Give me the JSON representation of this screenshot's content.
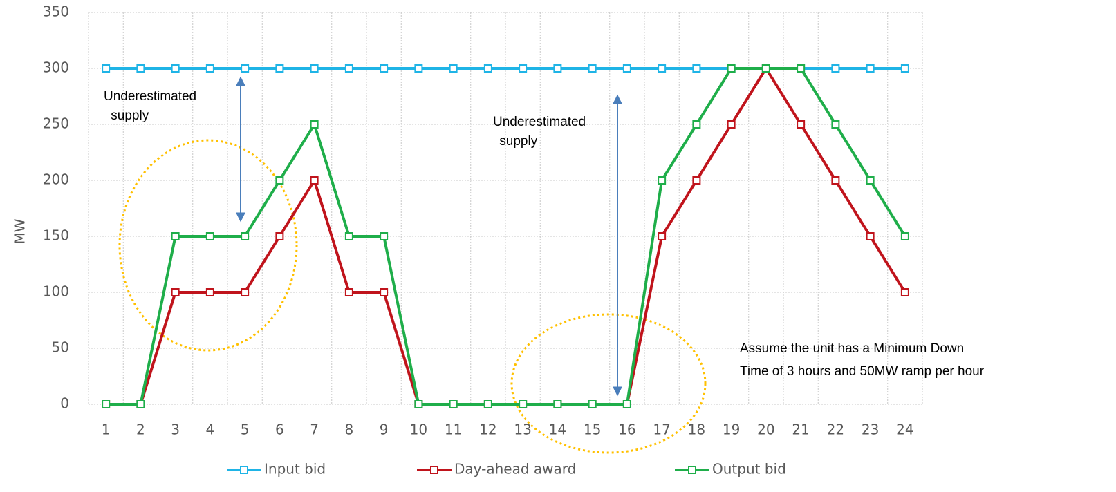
{
  "chart_data": {
    "type": "line",
    "categories": [
      "1",
      "2",
      "3",
      "4",
      "5",
      "6",
      "7",
      "8",
      "9",
      "10",
      "11",
      "12",
      "13",
      "14",
      "15",
      "16",
      "17",
      "18",
      "19",
      "20",
      "21",
      "22",
      "23",
      "24"
    ],
    "series": [
      {
        "name": "Input bid",
        "color": "#1fb4e6",
        "values": [
          300,
          300,
          300,
          300,
          300,
          300,
          300,
          300,
          300,
          300,
          300,
          300,
          300,
          300,
          300,
          300,
          300,
          300,
          300,
          300,
          300,
          300,
          300,
          300
        ]
      },
      {
        "name": "Day-ahead award",
        "color": "#c0141c",
        "values": [
          0,
          0,
          100,
          100,
          100,
          150,
          200,
          100,
          100,
          0,
          0,
          0,
          0,
          0,
          0,
          0,
          150,
          200,
          250,
          300,
          250,
          200,
          150,
          100
        ]
      },
      {
        "name": "Output bid",
        "color": "#1fae4a",
        "values": [
          0,
          0,
          150,
          150,
          150,
          200,
          250,
          150,
          150,
          0,
          0,
          0,
          0,
          0,
          0,
          0,
          200,
          250,
          300,
          300,
          300,
          250,
          200,
          150
        ]
      }
    ],
    "ylabel": "MW",
    "ylim": [
      0,
      350
    ],
    "yticks": [
      0,
      50,
      100,
      150,
      200,
      250,
      300,
      350
    ],
    "grid": true,
    "legend": "bottom",
    "annotations": [
      [
        "Underestimated",
        " supply"
      ],
      [
        "Underestimated",
        " supply"
      ],
      [
        "Assume the unit has a Minimum Down",
        "Time of 3 hours and 50MW ramp per hour"
      ]
    ]
  }
}
